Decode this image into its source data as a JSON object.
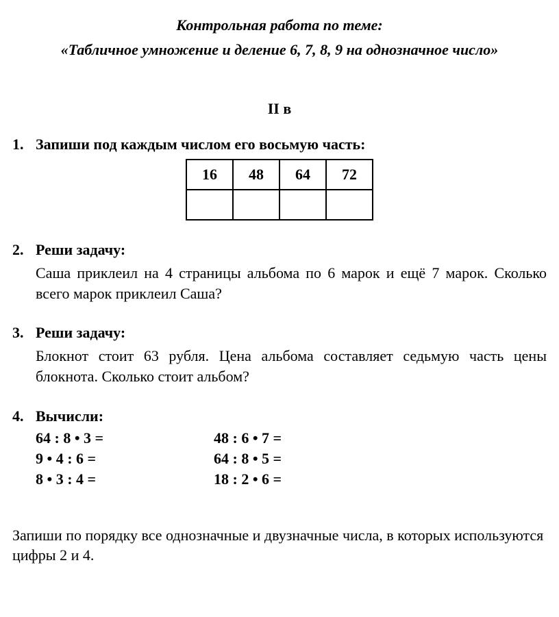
{
  "title": "Контрольная работа по теме:",
  "subtitle": "«Табличное умножение и деление 6, 7, 8, 9 на однозначное число»",
  "variant": "II в",
  "tasks": {
    "t1": {
      "num": "1.",
      "heading": "Запиши под каждым числом его восьмую часть:",
      "cells": [
        "16",
        "48",
        "64",
        "72"
      ]
    },
    "t2": {
      "num": "2.",
      "heading": "Реши задачу:",
      "body": "Саша приклеил на 4 страницы альбома по 6 марок и  ещё 7 марок. Сколько всего марок приклеил Саша?"
    },
    "t3": {
      "num": "3.",
      "heading": "Реши задачу:",
      "body": "Блокнот стоит 63 рубля. Цена альбома составляет седьмую часть цены блокнота. Сколько стоит альбом?"
    },
    "t4": {
      "num": "4.",
      "heading": "Вычисли:",
      "col1": [
        "64 : 8 •  3 =",
        "9 • 4  : 6 =",
        "8 • 3 : 4 ="
      ],
      "col2": [
        "48 : 6 • 7 =",
        "64 : 8 • 5 =",
        "18 : 2 • 6 ="
      ]
    },
    "footer": "Запиши по порядку все однозначные и двузначные числа, в которых используются цифры 2 и 4."
  }
}
